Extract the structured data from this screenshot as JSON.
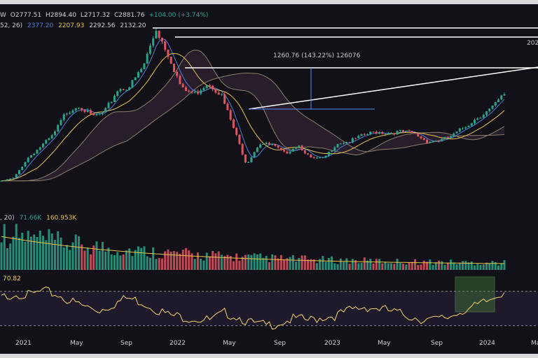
{
  "header": {
    "ohlc": {
      "interval": "W",
      "open": "O2777.51",
      "high": "H2894.40",
      "low": "L2717.32",
      "close": "C2881.76",
      "change": "+104.00 (+3.74%)"
    },
    "ichimoku": {
      "params": "52, 26)",
      "values": [
        "2377.20",
        "2207.93",
        "2292.56",
        "2132.20"
      ],
      "colors": [
        "#4a7de0",
        "#e6c34a",
        "#d0d0d0",
        "#d0d0d0"
      ]
    }
  },
  "volume_panel": {
    "params": ", 20)",
    "vol": "71.66K",
    "ma": "160.953K"
  },
  "rsi_panel": {
    "value": "70.82"
  },
  "annotations": {
    "measure_label": "1260.76 (143.22%) 126076",
    "right_edge_label": "202"
  },
  "colors": {
    "background": "#121117",
    "up": "#2aa58a",
    "down": "#e05563",
    "kijun": "#e6c34a",
    "tenkan": "#4a7de0",
    "rsi": "#f2d36b",
    "rsi_band": "#1f1a2b",
    "highlight": "#3f7a3a"
  },
  "chart_data": {
    "type": "candlestick",
    "x_ticks": [
      "2021",
      "May",
      "Sep",
      "2022",
      "May",
      "Sep",
      "2023",
      "May",
      "Sep",
      "2024",
      "Ma"
    ],
    "price_path": [
      {
        "date": "2020-11",
        "close": 600
      },
      {
        "date": "2020-12",
        "close": 700
      },
      {
        "date": "2021-01",
        "close": 1200
      },
      {
        "date": "2021-02",
        "close": 1500
      },
      {
        "date": "2021-03",
        "close": 1800
      },
      {
        "date": "2021-04",
        "close": 2400
      },
      {
        "date": "2021-05",
        "close": 2600
      },
      {
        "date": "2021-06",
        "close": 2300
      },
      {
        "date": "2021-07",
        "close": 2400
      },
      {
        "date": "2021-08",
        "close": 3000
      },
      {
        "date": "2021-09",
        "close": 3100
      },
      {
        "date": "2021-10",
        "close": 3600
      },
      {
        "date": "2021-11",
        "close": 4600
      },
      {
        "date": "2021-12",
        "close": 3900
      },
      {
        "date": "2022-01",
        "close": 3000
      },
      {
        "date": "2022-02",
        "close": 2900
      },
      {
        "date": "2022-03",
        "close": 3200
      },
      {
        "date": "2022-04",
        "close": 2900
      },
      {
        "date": "2022-05",
        "close": 2000
      },
      {
        "date": "2022-06",
        "close": 1050
      },
      {
        "date": "2022-07",
        "close": 1600
      },
      {
        "date": "2022-08",
        "close": 1550
      },
      {
        "date": "2022-09",
        "close": 1330
      },
      {
        "date": "2022-10",
        "close": 1570
      },
      {
        "date": "2022-11",
        "close": 1200
      },
      {
        "date": "2022-12",
        "close": 1200
      },
      {
        "date": "2023-01",
        "close": 1600
      },
      {
        "date": "2023-02",
        "close": 1650
      },
      {
        "date": "2023-03",
        "close": 1800
      },
      {
        "date": "2023-04",
        "close": 1900
      },
      {
        "date": "2023-05",
        "close": 1870
      },
      {
        "date": "2023-06",
        "close": 1900
      },
      {
        "date": "2023-07",
        "close": 1850
      },
      {
        "date": "2023-08",
        "close": 1650
      },
      {
        "date": "2023-09",
        "close": 1670
      },
      {
        "date": "2023-10",
        "close": 1800
      },
      {
        "date": "2023-11",
        "close": 2050
      },
      {
        "date": "2023-12",
        "close": 2300
      },
      {
        "date": "2024-01",
        "close": 2500
      },
      {
        "date": "2024-02",
        "close": 2881.76
      }
    ],
    "rsi_path": [
      62,
      68,
      65,
      70,
      66,
      58,
      52,
      48,
      55,
      62,
      58,
      50,
      42,
      40,
      38,
      36,
      45,
      40,
      32,
      30,
      34,
      38,
      36,
      40,
      42,
      48,
      52,
      50,
      46,
      42,
      38,
      36,
      40,
      48,
      52,
      60,
      70.82
    ]
  }
}
